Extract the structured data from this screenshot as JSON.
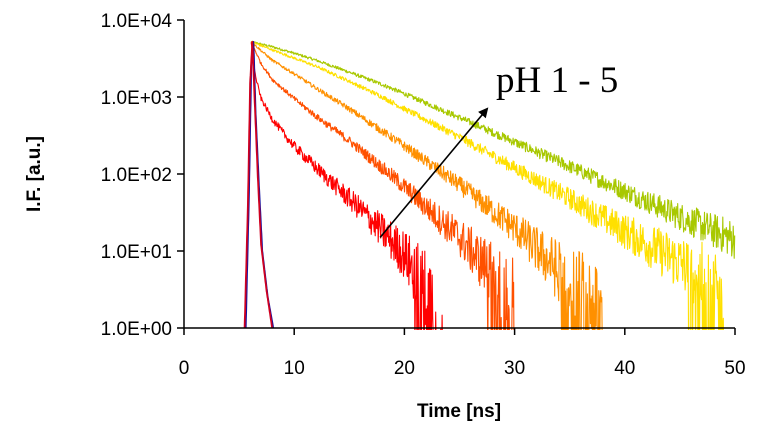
{
  "chart_data": {
    "type": "line",
    "title": "",
    "xlabel": "Time [ns]",
    "ylabel": "I.F. [a.u.]",
    "xlim": [
      0,
      50
    ],
    "ylim": [
      1,
      10000
    ],
    "yscale": "log",
    "xticks": [
      0,
      10,
      20,
      30,
      40,
      50
    ],
    "xtick_labels": [
      "0",
      "10",
      "20",
      "30",
      "40",
      "50"
    ],
    "yticks": [
      1,
      10,
      100,
      1000,
      10000
    ],
    "ytick_labels": [
      "1.0E+00",
      "1.0E+01",
      "1.0E+02",
      "1.0E+03",
      "1.0E+04"
    ],
    "grid": false,
    "legend": "none",
    "annotation": {
      "text": "pH 1 - 5",
      "arrow_from": [
        17.8,
        15
      ],
      "arrow_to": [
        27.5,
        700
      ]
    },
    "series": [
      {
        "color": "#d00020",
        "role": "instrument response",
        "x": [
          5.5,
          5.8,
          6.0,
          6.2,
          6.4,
          6.7,
          7.0,
          7.5,
          8.0
        ],
        "y": [
          1,
          40,
          1500,
          5200,
          1000,
          90,
          12,
          3,
          1
        ]
      },
      {
        "color": "#1010a0",
        "role": "instrument response",
        "x": [
          5.6,
          5.9,
          6.1,
          6.3,
          6.5,
          6.8,
          7.1,
          7.6,
          8.1
        ],
        "y": [
          1,
          60,
          2500,
          5200,
          600,
          70,
          10,
          2.5,
          1
        ]
      },
      {
        "color": "#ff0000",
        "x": [
          6.1,
          6.5,
          7,
          8,
          9,
          10,
          12,
          14,
          16,
          18,
          20,
          22,
          23.5
        ],
        "y": [
          5200,
          1800,
          950,
          520,
          340,
          230,
          120,
          65,
          35,
          18,
          9,
          3,
          1
        ]
      },
      {
        "color": "#ff5000",
        "x": [
          6.1,
          7,
          8,
          10,
          12,
          15,
          18,
          20,
          22,
          25,
          28,
          30
        ],
        "y": [
          5200,
          2700,
          1700,
          950,
          560,
          270,
          120,
          68,
          37,
          15,
          5,
          1.5
        ]
      },
      {
        "color": "#ff9000",
        "x": [
          6.1,
          8,
          10,
          12,
          15,
          18,
          20,
          22,
          25,
          30,
          35,
          38
        ],
        "y": [
          5200,
          3000,
          2000,
          1300,
          700,
          360,
          230,
          145,
          72,
          20,
          4,
          1.5
        ]
      },
      {
        "color": "#ffe000",
        "x": [
          6.1,
          8,
          10,
          12,
          15,
          18,
          20,
          22,
          25,
          30,
          35,
          40,
          45,
          49
        ],
        "y": [
          5200,
          4100,
          3200,
          2500,
          1600,
          1000,
          700,
          500,
          300,
          120,
          48,
          18,
          7,
          3
        ]
      },
      {
        "color": "#a8c800",
        "x": [
          6.1,
          8,
          10,
          12,
          15,
          18,
          20,
          22,
          25,
          30,
          35,
          40,
          45,
          50
        ],
        "y": [
          5200,
          4500,
          3700,
          3000,
          2100,
          1450,
          1100,
          830,
          540,
          260,
          125,
          60,
          28,
          14
        ]
      }
    ]
  }
}
